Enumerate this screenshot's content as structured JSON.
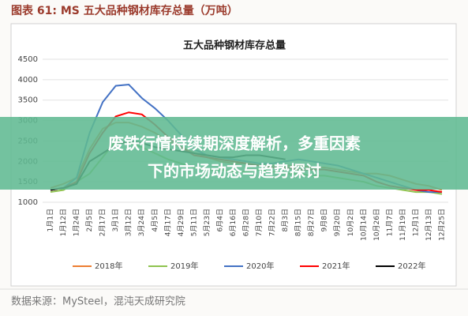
{
  "caption": "图表 61: MS 五大品种钢材库存总量（万吨）",
  "banner": [
    "废铁行情持续期深度解析，多重因素",
    "下的市场动态与趋势探讨"
  ],
  "source": "数据来源：MySteel，混沌天成研究院",
  "chart_data": {
    "type": "line",
    "title": "五大品种钢材库存总量",
    "categories": [
      "1月1日",
      "1月12日",
      "1月24日",
      "2月5日",
      "2月17日",
      "3月1日",
      "3月12日",
      "3月24日",
      "4月5日",
      "4月17日",
      "4月29日",
      "5月11日",
      "5月23日",
      "6月4日",
      "6月16日",
      "6月28日",
      "7月10日",
      "7月22日",
      "8月3日",
      "8月15日",
      "8月27日",
      "9月8日",
      "9月20日",
      "10月2日",
      "10月14日",
      "10月26日",
      "11月7日",
      "11月19日",
      "12月1日",
      "12月13日",
      "12月25日"
    ],
    "series": [
      {
        "name": "2018年",
        "color": "#ed7d31",
        "values": [
          1350,
          1450,
          1600,
          2300,
          2800,
          2950,
          2950,
          2850,
          2700,
          2500,
          2350,
          2200,
          2100,
          2000,
          1950,
          1950,
          1900,
          1900,
          1900,
          1900,
          1850,
          1850,
          1800,
          1750,
          1700,
          1700,
          1650,
          1550,
          1450,
          1400,
          1300
        ]
      },
      {
        "name": "2019年",
        "color": "#8fc34f",
        "values": [
          1250,
          1300,
          1500,
          1700,
          2100,
          2500,
          2450,
          2350,
          2200,
          2050,
          1950,
          1850,
          1800,
          1800,
          1750,
          1750,
          1800,
          1750,
          1700,
          1700,
          1650,
          1650,
          1600,
          1550,
          1500,
          1400,
          1350,
          1300,
          1250,
          1250,
          1200
        ]
      },
      {
        "name": "2020年",
        "color": "#4472c4",
        "values": [
          1300,
          1350,
          1600,
          2700,
          3450,
          3850,
          3880,
          3550,
          3300,
          3000,
          2650,
          2300,
          2150,
          2100,
          2050,
          2000,
          1950,
          1950,
          2000,
          2050,
          2000,
          1950,
          1900,
          1800,
          1700,
          1600,
          1500,
          1400,
          1300,
          1250,
          1250
        ]
      },
      {
        "name": "2021年",
        "color": "#ff0000",
        "values": [
          1300,
          1350,
          1500,
          2200,
          2700,
          3100,
          3200,
          3150,
          2900,
          2600,
          2350,
          2150,
          2100,
          2050,
          2000,
          1950,
          1900,
          1850,
          1850,
          1800,
          1800,
          1800,
          1750,
          1700,
          1650,
          1500,
          1400,
          1350,
          1300,
          1300,
          1250
        ]
      },
      {
        "name": "2022年",
        "color": "#000000",
        "values": [
          1300,
          1350,
          1450,
          2000,
          2200,
          2400,
          2500,
          2450,
          2350,
          2300,
          2250,
          2200,
          2150,
          2100,
          2100,
          2150,
          2150,
          2100,
          2050,
          null,
          null,
          null,
          null,
          null,
          null,
          null,
          null,
          null,
          null,
          null,
          null
        ]
      }
    ],
    "ylim": [
      1000,
      4500
    ],
    "yticks": [
      1000,
      1500,
      2000,
      2500,
      3000,
      3500,
      4000,
      4500
    ],
    "grid": true
  }
}
